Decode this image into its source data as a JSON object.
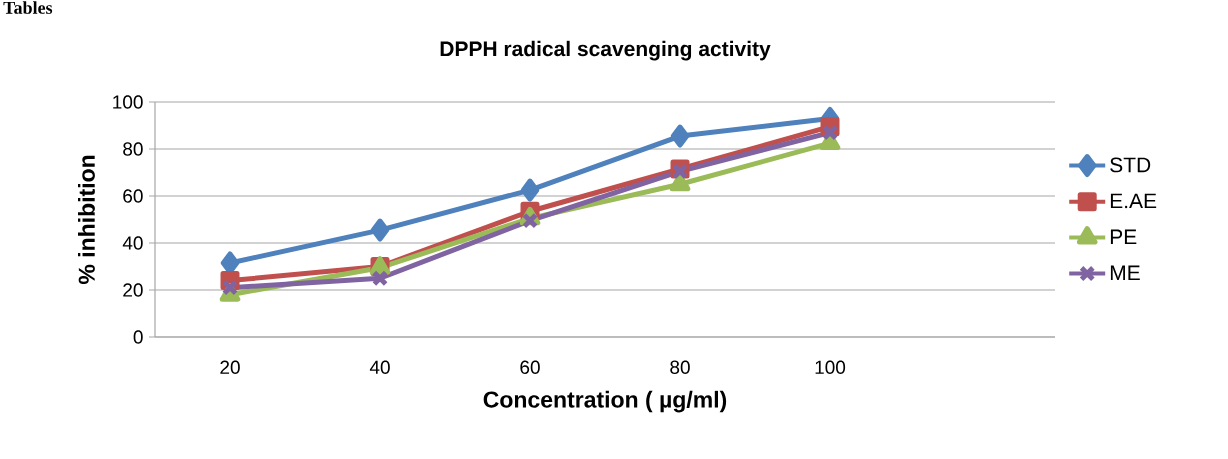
{
  "chart_data": {
    "type": "line",
    "title": "DPPH radical scavenging activity",
    "xlabel": "Concentration ( µg/ml)",
    "ylabel": "% inhibition",
    "annotations": [
      "Tables"
    ],
    "categories": [
      "20",
      "40",
      "60",
      "80",
      "100",
      null
    ],
    "series": [
      {
        "name": "STD",
        "color": "#4f81bd",
        "marker": "diamond",
        "values": [
          31.5,
          45.5,
          62.5,
          85.5,
          93,
          null
        ]
      },
      {
        "name": "E.AE",
        "color": "#c0504d",
        "marker": "square",
        "values": [
          24,
          30,
          53.5,
          71.5,
          89.5,
          null
        ]
      },
      {
        "name": "PE",
        "color": "#9bbb59",
        "marker": "triangle",
        "values": [
          18,
          29.5,
          50.5,
          65,
          82.5,
          null
        ]
      },
      {
        "name": "ME",
        "color": "#8064a2",
        "marker": "cross",
        "values": [
          21,
          25,
          49.5,
          70.5,
          87,
          null
        ]
      }
    ],
    "ylim": [
      0,
      100
    ],
    "yticks": [
      0,
      20,
      40,
      60,
      80,
      100
    ],
    "grid": "y",
    "legend": "right",
    "line_style": "solid"
  }
}
